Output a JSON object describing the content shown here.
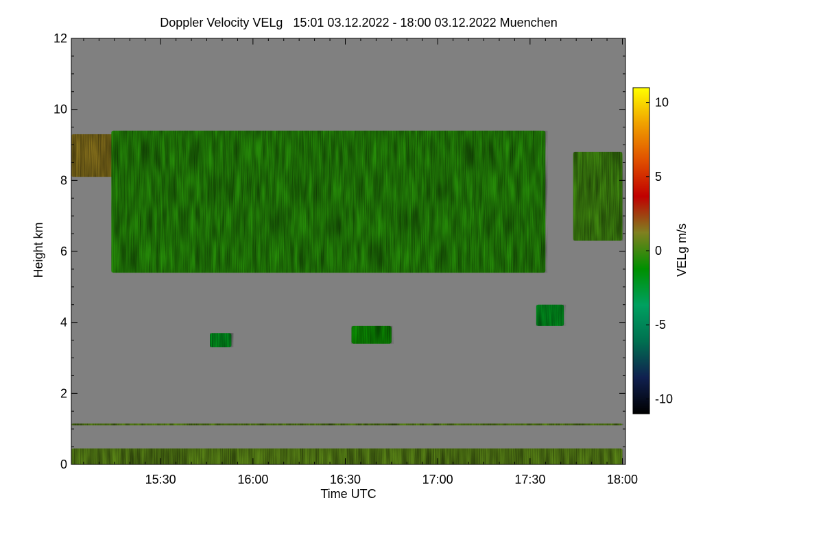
{
  "chart_data": {
    "type": "heatmap",
    "title": "Doppler Velocity VELg   15:01 03.12.2022 - 18:00 03.12.2022 Muenchen",
    "xlabel": "Time UTC",
    "ylabel": "Height km",
    "xlim_minutes": [
      901,
      1081
    ],
    "ylim": [
      0,
      12
    ],
    "x_ticks": [
      {
        "minute": 930,
        "label": "15:30"
      },
      {
        "minute": 960,
        "label": "16:00"
      },
      {
        "minute": 990,
        "label": "16:30"
      },
      {
        "minute": 1020,
        "label": "17:00"
      },
      {
        "minute": 1050,
        "label": "17:30"
      },
      {
        "minute": 1080,
        "label": "18:00"
      }
    ],
    "y_ticks": [
      0,
      2,
      4,
      6,
      8,
      10,
      12
    ],
    "colorbar": {
      "label": "VELg m/s",
      "range": [
        -11,
        11
      ],
      "ticks": [
        10,
        5,
        0,
        -5,
        -10
      ],
      "colors": [
        "#000000",
        "#102050",
        "#007050",
        "#00a060",
        "#009000",
        "#808020",
        "#c00000",
        "#e05000",
        "#f0a000",
        "#ffff00"
      ]
    },
    "background_color": "#808080",
    "features": [
      {
        "name": "cirrus-layer-left",
        "start": "15:01",
        "end": "15:25",
        "base_km": 8.1,
        "top_km": 9.3,
        "velocity_ms": 1.5
      },
      {
        "name": "main-cloud-deck",
        "start": "15:14",
        "end": "17:35",
        "base_km": 5.4,
        "top_km": 9.4,
        "velocity_ms": -0.5
      },
      {
        "name": "cirrus-layer-right",
        "start": "17:44",
        "end": "18:00",
        "base_km": 6.3,
        "top_km": 8.8,
        "velocity_ms": 0.0
      },
      {
        "name": "cloud-patch-1",
        "start": "15:46",
        "end": "15:53",
        "base_km": 3.3,
        "top_km": 3.7,
        "velocity_ms": -2.0
      },
      {
        "name": "cloud-patch-2",
        "start": "16:32",
        "end": "16:45",
        "base_km": 3.4,
        "top_km": 3.9,
        "velocity_ms": -1.0
      },
      {
        "name": "cloud-patch-3",
        "start": "17:32",
        "end": "17:41",
        "base_km": 3.9,
        "top_km": 4.5,
        "velocity_ms": -2.0
      },
      {
        "name": "boundary-layer",
        "start": "15:01",
        "end": "18:00",
        "base_km": 0.0,
        "top_km": 0.45,
        "velocity_ms": 0.5
      },
      {
        "name": "noise-line-1100m",
        "start": "15:01",
        "end": "18:00",
        "base_km": 1.1,
        "top_km": 1.15,
        "velocity_ms": 0.5
      }
    ]
  }
}
